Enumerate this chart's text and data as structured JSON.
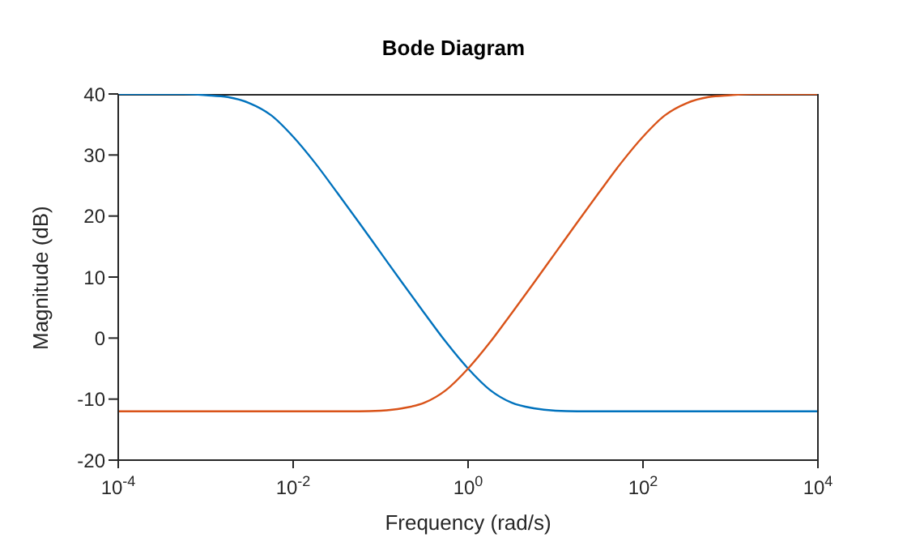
{
  "chart_data": {
    "type": "line",
    "title": "Bode Diagram",
    "xlabel": "Frequency (rad/s)",
    "ylabel": "Magnitude (dB)",
    "log": "x",
    "x": [
      0.0001,
      0.000178,
      0.000316,
      0.000562,
      0.001,
      0.00178,
      0.00316,
      0.00562,
      0.01,
      0.0178,
      0.0316,
      0.0562,
      0.1,
      0.178,
      0.316,
      0.562,
      1,
      1.78,
      3.16,
      5.62,
      10,
      17.8,
      31.6,
      56.2,
      100,
      178,
      316,
      562,
      1000,
      1780,
      3160,
      5620,
      10000
    ],
    "series": [
      {
        "color": "#0072bd",
        "values": [
          40,
          40,
          40,
          40,
          39.8,
          39.5,
          38.5,
          36.5,
          33,
          28.7,
          23.9,
          19,
          14,
          9,
          4.1,
          -0.7,
          -5,
          -8.5,
          -10.6,
          -11.5,
          -11.9,
          -12,
          -12,
          -12,
          -12,
          -12,
          -12,
          -12,
          -12,
          -12,
          -12,
          -12,
          -12
        ]
      },
      {
        "color": "#d95319",
        "values": [
          -12,
          -12,
          -12,
          -12,
          -12,
          -12,
          -12,
          -12,
          -12,
          -12,
          -12,
          -12,
          -11.9,
          -11.5,
          -10.6,
          -8.5,
          -5,
          -0.7,
          4.1,
          9,
          14,
          19,
          23.9,
          28.7,
          33,
          36.5,
          38.5,
          39.5,
          39.8,
          40,
          40,
          40,
          40
        ]
      }
    ],
    "xlim": [
      0.0001,
      10000
    ],
    "xticks": [
      {
        "value": 0.0001,
        "label": "10$^{-4}$"
      },
      {
        "value": 0.01,
        "label": "10$^{-2}$"
      },
      {
        "value": 1,
        "label": "10$^{0}$"
      },
      {
        "value": 100,
        "label": "10$^{2}$"
      },
      {
        "value": 10000,
        "label": "10$^{4}$"
      }
    ],
    "ylim": [
      -20,
      40
    ],
    "yticks": [
      -20,
      -10,
      0,
      10,
      20,
      30,
      40
    ]
  }
}
